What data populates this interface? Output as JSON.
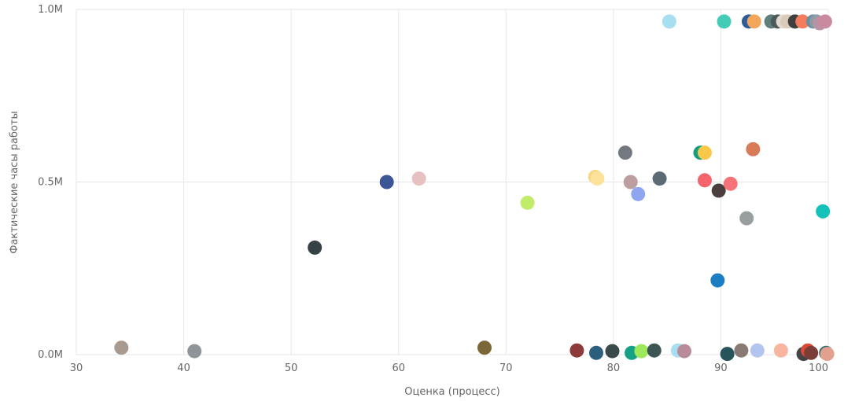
{
  "chart_data": {
    "type": "scatter",
    "xlabel": "Оценка (процесс)",
    "ylabel": "Фактические часы работы",
    "xlim": [
      30,
      100
    ],
    "ylim": [
      0,
      1000000
    ],
    "x_ticks": [
      {
        "value": 30,
        "label": "30"
      },
      {
        "value": 40,
        "label": "40"
      },
      {
        "value": 50,
        "label": "50"
      },
      {
        "value": 60,
        "label": "60"
      },
      {
        "value": 70,
        "label": "70"
      },
      {
        "value": 80,
        "label": "80"
      },
      {
        "value": 90,
        "label": "90"
      },
      {
        "value": 100,
        "label": "100"
      }
    ],
    "y_ticks": [
      {
        "value": 0,
        "label": "0.0M"
      },
      {
        "value": 500000,
        "label": "0.5M"
      },
      {
        "value": 1000000,
        "label": "1.0M"
      }
    ],
    "grid": true,
    "points": [
      {
        "x": 34.2,
        "y": 20000,
        "color": "#a89a8e"
      },
      {
        "x": 41.0,
        "y": 10000,
        "color": "#8f9499"
      },
      {
        "x": 52.2,
        "y": 310000,
        "color": "#374247"
      },
      {
        "x": 58.9,
        "y": 500000,
        "color": "#3b5596"
      },
      {
        "x": 61.9,
        "y": 510000,
        "color": "#e7c1bf"
      },
      {
        "x": 68.0,
        "y": 20000,
        "color": "#7b6637"
      },
      {
        "x": 72.0,
        "y": 440000,
        "color": "#c1ec6a"
      },
      {
        "x": 76.6,
        "y": 12000,
        "color": "#8d3a3a"
      },
      {
        "x": 78.4,
        "y": 5000,
        "color": "#2c5e7d"
      },
      {
        "x": 78.3,
        "y": 515000,
        "color": "#f7d783"
      },
      {
        "x": 78.5,
        "y": 510000,
        "color": "#fbe199"
      },
      {
        "x": 79.9,
        "y": 10000,
        "color": "#3a4a4a"
      },
      {
        "x": 81.1,
        "y": 585000,
        "color": "#747881"
      },
      {
        "x": 81.6,
        "y": 500000,
        "color": "#bc9ea0"
      },
      {
        "x": 81.7,
        "y": 5000,
        "color": "#16a085"
      },
      {
        "x": 82.3,
        "y": 465000,
        "color": "#8ea6ef"
      },
      {
        "x": 82.6,
        "y": 10000,
        "color": "#9ee85b"
      },
      {
        "x": 83.8,
        "y": 12000,
        "color": "#3d5553"
      },
      {
        "x": 84.3,
        "y": 510000,
        "color": "#5d6b74"
      },
      {
        "x": 85.2,
        "y": 965000,
        "color": "#a7def0"
      },
      {
        "x": 86.0,
        "y": 12000,
        "color": "#a7def0"
      },
      {
        "x": 86.6,
        "y": 10000,
        "color": "#b98a99"
      },
      {
        "x": 88.1,
        "y": 585000,
        "color": "#169c80"
      },
      {
        "x": 88.5,
        "y": 585000,
        "color": "#f8c84a"
      },
      {
        "x": 88.5,
        "y": 505000,
        "color": "#f5646c"
      },
      {
        "x": 89.7,
        "y": 215000,
        "color": "#1c7ec2"
      },
      {
        "x": 89.8,
        "y": 475000,
        "color": "#4a3e3e"
      },
      {
        "x": 90.3,
        "y": 965000,
        "color": "#44ccb7"
      },
      {
        "x": 90.6,
        "y": 2000,
        "color": "#27545a"
      },
      {
        "x": 90.9,
        "y": 495000,
        "color": "#f7737a"
      },
      {
        "x": 91.9,
        "y": 12000,
        "color": "#8a7a76"
      },
      {
        "x": 92.4,
        "y": 395000,
        "color": "#999ea0"
      },
      {
        "x": 92.6,
        "y": 965000,
        "color": "#2d5c99"
      },
      {
        "x": 93.1,
        "y": 965000,
        "color": "#f2a65a"
      },
      {
        "x": 93.0,
        "y": 595000,
        "color": "#d87b59"
      },
      {
        "x": 93.4,
        "y": 12000,
        "color": "#b3c5ee"
      },
      {
        "x": 94.7,
        "y": 965000,
        "color": "#5e7f7c"
      },
      {
        "x": 95.3,
        "y": 965000,
        "color": "#4d5a5a"
      },
      {
        "x": 95.6,
        "y": 12000,
        "color": "#f8b5a0"
      },
      {
        "x": 95.8,
        "y": 965000,
        "color": "#e2dad0"
      },
      {
        "x": 96.2,
        "y": 965000,
        "color": "#d8cbb9"
      },
      {
        "x": 96.9,
        "y": 965000,
        "color": "#3f3f3f"
      },
      {
        "x": 97.6,
        "y": 965000,
        "color": "#f47d5f"
      },
      {
        "x": 97.7,
        "y": 2000,
        "color": "#444444"
      },
      {
        "x": 98.1,
        "y": 12000,
        "color": "#d94a36"
      },
      {
        "x": 98.4,
        "y": 5000,
        "color": "#7a3d37"
      },
      {
        "x": 98.6,
        "y": 965000,
        "color": "#6b8fa0"
      },
      {
        "x": 98.9,
        "y": 965000,
        "color": "#8a9ca6"
      },
      {
        "x": 99.2,
        "y": 960000,
        "color": "#b893a5"
      },
      {
        "x": 99.5,
        "y": 415000,
        "color": "#14c1b8"
      },
      {
        "x": 99.7,
        "y": 965000,
        "color": "#c98aa0"
      },
      {
        "x": 99.8,
        "y": 5000,
        "color": "#2c6b6b"
      },
      {
        "x": 99.9,
        "y": 2000,
        "color": "#e3a18d"
      }
    ]
  }
}
